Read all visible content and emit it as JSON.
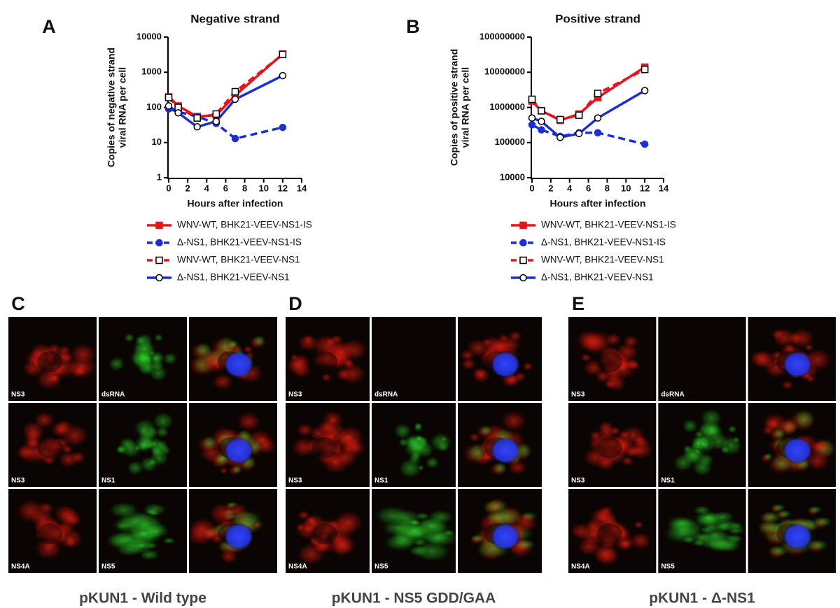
{
  "chart_data": [
    {
      "type": "line",
      "panel_label": "A",
      "title": "Negative strand",
      "ylabel": [
        "Copies of negative strand",
        "viral RNA per cell"
      ],
      "xlabel": "Hours after infection",
      "x": [
        0,
        1,
        3,
        5,
        7,
        12
      ],
      "xlim": [
        0,
        14
      ],
      "xticks": [
        0,
        2,
        4,
        6,
        8,
        10,
        12,
        14
      ],
      "ylim": [
        1,
        10000
      ],
      "yticks": [
        1,
        10,
        100,
        1000,
        10000
      ],
      "log_y": true,
      "series": [
        {
          "name": "WNV-WT, BHK21-VEEV-NS1-IS",
          "color": "#e8141c",
          "marker": "square",
          "filled": true,
          "dashed": false,
          "values": [
            200,
            110,
            55,
            60,
            220,
            3300
          ]
        },
        {
          "name": "Δ-NS1, BHK21-VEEV-NS1-IS",
          "color": "#1a2fd6",
          "marker": "circle",
          "filled": true,
          "dashed": true,
          "values": [
            90,
            75,
            55,
            35,
            13,
            27
          ]
        },
        {
          "name": "WNV-WT, BHK21-VEEV-NS1",
          "color": "#e8141c",
          "marker": "square",
          "filled": false,
          "dashed": true,
          "values": [
            190,
            100,
            50,
            65,
            280,
            3200
          ]
        },
        {
          "name": "Δ-NS1, BHK21-VEEV-NS1",
          "color": "#1a2fd6",
          "marker": "circle",
          "filled": false,
          "dashed": false,
          "values": [
            110,
            70,
            28,
            40,
            170,
            800
          ]
        }
      ]
    },
    {
      "type": "line",
      "panel_label": "B",
      "title": "Positive strand",
      "ylabel": [
        "Copies of positive strand",
        "viral RNA per cell"
      ],
      "xlabel": "Hours after infection",
      "x": [
        0,
        1,
        3,
        5,
        7,
        12
      ],
      "xlim": [
        0,
        14
      ],
      "xticks": [
        0,
        2,
        4,
        6,
        8,
        10,
        12,
        14
      ],
      "ylim": [
        10000,
        100000000
      ],
      "yticks": [
        10000,
        100000,
        1000000,
        10000000,
        100000000
      ],
      "log_y": true,
      "series": [
        {
          "name": "WNV-WT, BHK21-VEEV-NS1-IS",
          "color": "#e8141c",
          "marker": "square",
          "filled": true,
          "dashed": false,
          "values": [
            1500000,
            800000,
            430000,
            650000,
            1900000,
            14000000
          ]
        },
        {
          "name": "Δ-NS1, BHK21-VEEV-NS1-IS",
          "color": "#1a2fd6",
          "marker": "circle",
          "filled": true,
          "dashed": true,
          "values": [
            320000,
            230000,
            150000,
            190000,
            190000,
            90000
          ]
        },
        {
          "name": "WNV-WT, BHK21-VEEV-NS1",
          "color": "#e8141c",
          "marker": "square",
          "filled": false,
          "dashed": true,
          "values": [
            1700000,
            800000,
            450000,
            600000,
            2500000,
            12000000
          ]
        },
        {
          "name": "Δ-NS1, BHK21-VEEV-NS1",
          "color": "#1a2fd6",
          "marker": "circle",
          "filled": false,
          "dashed": false,
          "values": [
            500000,
            400000,
            140000,
            180000,
            500000,
            3000000
          ]
        }
      ]
    }
  ],
  "panels": [
    {
      "label": "C",
      "caption": "pKUN1 - Wild type",
      "tiles": [
        [
          "NS3",
          "dsRNA"
        ],
        [
          "NS3",
          "NS1"
        ],
        [
          "NS4A",
          "NS5"
        ]
      ]
    },
    {
      "label": "D",
      "caption": "pKUN1 - NS5 GDD/GAA",
      "tiles": [
        [
          "NS3",
          "dsRNA"
        ],
        [
          "NS3",
          "NS1"
        ],
        [
          "NS4A",
          "NS5"
        ]
      ]
    },
    {
      "label": "E",
      "caption": "pKUN1 - Δ-NS1",
      "tiles": [
        [
          "NS3",
          "dsRNA"
        ],
        [
          "NS3",
          "NS1"
        ],
        [
          "NS4A",
          "NS5"
        ]
      ]
    }
  ]
}
